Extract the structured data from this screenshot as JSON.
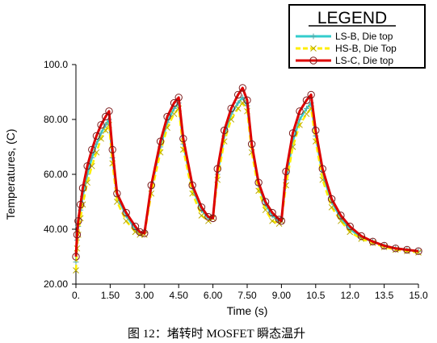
{
  "chart_data": {
    "type": "line",
    "title": "",
    "xlabel": "Time (s)",
    "ylabel": "Temperatures, (C)",
    "xlim": [
      0,
      15
    ],
    "ylim": [
      20,
      100
    ],
    "x_ticks": [
      "0.",
      "1.50",
      "3.00",
      "4.50",
      "6.00",
      "7.50",
      "9.00",
      "10.5",
      "12.0",
      "13.5",
      "15.0"
    ],
    "y_ticks": [
      "20.00",
      "40.00",
      "60.00",
      "80.00",
      "100.0"
    ],
    "grid": false,
    "legend": {
      "title": "LEGEND",
      "position": "top-right",
      "entries": [
        "LS-B, Die top",
        "HS-B, Die Top",
        "LS-C, Die top"
      ]
    },
    "series": [
      {
        "name": "LS-B, Die top",
        "color": "#33cccc",
        "marker": "plus",
        "x": [
          0,
          0.05,
          0.1,
          0.2,
          0.3,
          0.5,
          0.7,
          0.9,
          1.1,
          1.3,
          1.45,
          1.6,
          1.8,
          2.2,
          2.6,
          2.8,
          3.0,
          3.3,
          3.7,
          4.0,
          4.3,
          4.5,
          4.7,
          5.1,
          5.5,
          5.8,
          6.0,
          6.2,
          6.5,
          6.8,
          7.1,
          7.3,
          7.5,
          7.7,
          8.0,
          8.3,
          8.6,
          8.9,
          9.0,
          9.2,
          9.5,
          9.8,
          10.1,
          10.3,
          10.5,
          10.8,
          11.2,
          11.6,
          12.0,
          12.5,
          13.0,
          13.5,
          14.0,
          14.5,
          15.0
        ],
        "y": [
          28,
          36,
          41,
          47,
          52,
          60,
          66,
          71,
          75,
          78,
          80,
          66,
          52,
          45,
          40,
          38.5,
          39,
          55,
          70,
          79,
          84,
          86,
          71,
          55,
          47,
          44,
          45,
          60,
          74,
          82,
          86,
          88,
          85,
          70,
          56,
          49,
          45,
          43,
          44,
          58,
          72,
          80,
          84,
          86,
          74,
          60,
          50,
          44,
          40,
          37,
          35.5,
          34,
          33,
          32.5,
          32
        ]
      },
      {
        "name": "HS-B, Die Top",
        "color": "#ffee00",
        "marker": "x",
        "x": [
          0,
          0.05,
          0.1,
          0.2,
          0.3,
          0.5,
          0.7,
          0.9,
          1.1,
          1.3,
          1.45,
          1.6,
          1.8,
          2.2,
          2.6,
          2.8,
          3.0,
          3.3,
          3.7,
          4.0,
          4.3,
          4.5,
          4.7,
          5.1,
          5.5,
          5.8,
          6.0,
          6.2,
          6.5,
          6.8,
          7.1,
          7.3,
          7.5,
          7.7,
          8.0,
          8.3,
          8.6,
          8.9,
          9.0,
          9.2,
          9.5,
          9.8,
          10.1,
          10.3,
          10.5,
          10.8,
          11.2,
          11.6,
          12.0,
          12.5,
          13.0,
          13.5,
          14.0,
          14.5,
          15.0
        ],
        "y": [
          25,
          33,
          38,
          44,
          49,
          57,
          63,
          68,
          73,
          76,
          78,
          64,
          50,
          43,
          39,
          38,
          38,
          53,
          68,
          77,
          82,
          84,
          69,
          53,
          45,
          43,
          44,
          58,
          72,
          80,
          84,
          86,
          83,
          68,
          54,
          47,
          43,
          42,
          43,
          56,
          70,
          78,
          82,
          84,
          72,
          58,
          48,
          43,
          39,
          36.5,
          35,
          33.5,
          32.5,
          32,
          31.5
        ]
      },
      {
        "name": "LS-C, Die top",
        "color": "#dd0000",
        "marker": "circle",
        "x": [
          0,
          0.05,
          0.1,
          0.2,
          0.3,
          0.5,
          0.7,
          0.9,
          1.1,
          1.3,
          1.45,
          1.6,
          1.8,
          2.2,
          2.6,
          2.8,
          3.0,
          3.3,
          3.7,
          4.0,
          4.3,
          4.5,
          4.7,
          5.1,
          5.5,
          5.8,
          6.0,
          6.2,
          6.5,
          6.8,
          7.1,
          7.3,
          7.5,
          7.7,
          8.0,
          8.3,
          8.6,
          8.9,
          9.0,
          9.2,
          9.5,
          9.8,
          10.1,
          10.3,
          10.5,
          10.8,
          11.2,
          11.6,
          12.0,
          12.5,
          13.0,
          13.5,
          14.0,
          14.5,
          15.0
        ],
        "y": [
          30,
          38,
          43,
          49,
          55,
          63,
          69,
          74,
          78,
          81,
          83,
          69,
          53,
          46,
          41,
          39,
          38.5,
          56,
          72,
          81,
          86,
          88,
          73,
          56,
          48,
          44.5,
          44,
          62,
          76,
          84,
          89,
          91.5,
          87,
          71,
          57,
          50,
          46,
          43.5,
          43,
          61,
          75,
          83,
          87,
          89,
          76,
          62,
          51,
          45,
          41,
          37.5,
          35.5,
          34,
          33,
          32.5,
          32
        ]
      }
    ]
  },
  "caption": "图 12：堵转时 MOSFET 瞬态温升"
}
